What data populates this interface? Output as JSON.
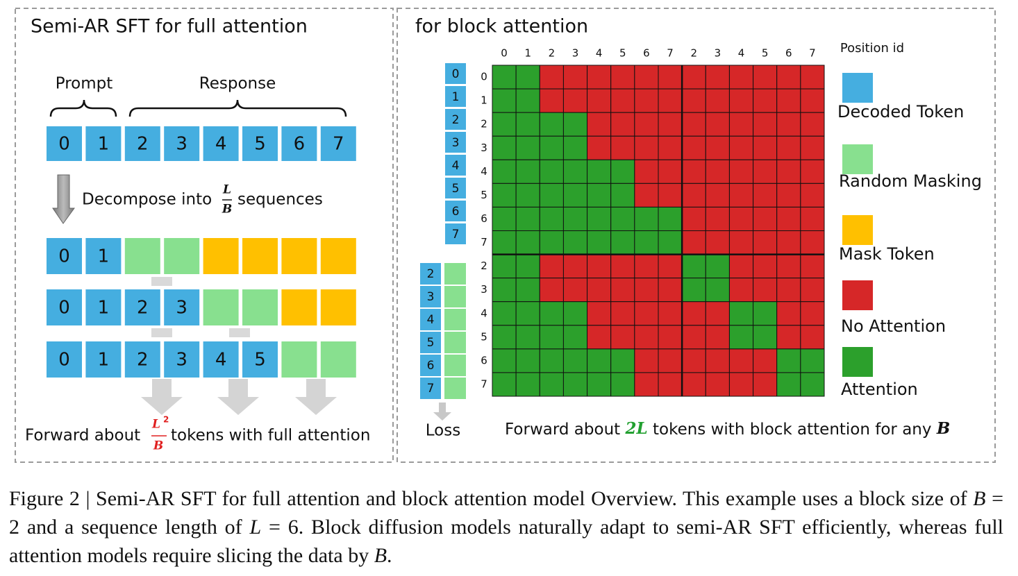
{
  "left_panel": {
    "title": "Semi-AR SFT for full attention",
    "prompt_label": "Prompt",
    "response_label": "Response",
    "tokens": [
      0,
      1,
      2,
      3,
      4,
      5,
      6,
      7
    ],
    "decompose": {
      "prefix": "Decompose into",
      "numerator": "L",
      "denominator": "B",
      "suffix": "sequences"
    },
    "sequences": [
      [
        0,
        1,
        null,
        null,
        null,
        null,
        null,
        null
      ],
      [
        0,
        1,
        2,
        3,
        null,
        null,
        null,
        null
      ],
      [
        0,
        1,
        2,
        3,
        4,
        5,
        null,
        null
      ]
    ],
    "forward": {
      "prefix": "Forward about",
      "numerator": "L",
      "exponent": 2,
      "denominator": "B",
      "suffix": "tokens with full attention"
    }
  },
  "right_panel": {
    "title": "for block attention",
    "column_positions": [
      0,
      1,
      2,
      3,
      4,
      5,
      6,
      7,
      2,
      3,
      4,
      5,
      6,
      7
    ],
    "row_positions": [
      0,
      1,
      2,
      3,
      4,
      5,
      6,
      7,
      2,
      3,
      4,
      5,
      6,
      7
    ],
    "decoded_tokens": [
      0,
      1,
      2,
      3,
      4,
      5,
      6,
      7
    ],
    "noisy_tokens": [
      2,
      3,
      4,
      5,
      6,
      7
    ],
    "loss": "Loss",
    "legend": {
      "title": "Position id",
      "items": [
        "Decoded Token",
        "Random Masking",
        "Mask Token",
        "No Attention",
        "Attention"
      ]
    },
    "forward": {
      "prefix": "Forward about",
      "highlight": "2L",
      "middle": "tokens with block attention for any",
      "variable": "B"
    }
  },
  "caption": {
    "text1": "Figure 2 | Semi-AR SFT for full attention and block attention model Overview. This example uses a block size of ",
    "var1": "B",
    "text2": " = 2 and a sequence length of ",
    "var2": "L",
    "text3": " = 6. Block diffusion models naturally adapt to semi-AR SFT efficiently, whereas full attention models require slicing the data by ",
    "var3": "B",
    "text4": "."
  }
}
